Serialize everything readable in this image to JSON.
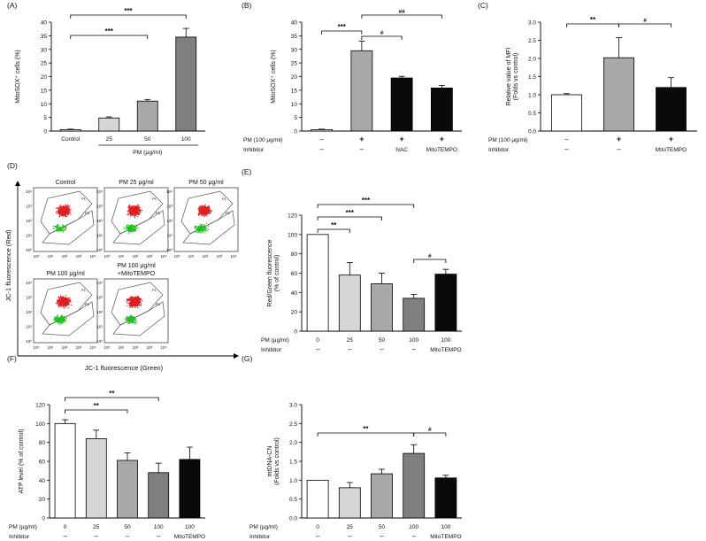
{
  "colors": {
    "white": "#ffffff",
    "light_gray": "#d6d6d6",
    "mid_gray": "#a8a8a8",
    "dark_gray": "#7f7f7f",
    "black": "#0a0a0a",
    "dot_red": "#e02020",
    "dot_green": "#20c020"
  },
  "chart_data": [
    {
      "panel": "(A)",
      "type": "bar",
      "ylabel": "MitoSOX⁺ cells (%)",
      "xlabel": "PM (μg/ml)",
      "ylim": [
        0,
        40
      ],
      "yticks": [
        "0",
        "5",
        "10",
        "15",
        "20",
        "25",
        "30",
        "35",
        "40"
      ],
      "categories": [
        "Control",
        "25",
        "50",
        "100"
      ],
      "values": [
        0.5,
        4.8,
        11.0,
        34.5
      ],
      "errors": [
        0.2,
        0.4,
        0.6,
        3.2
      ],
      "significance": [
        {
          "label": "***",
          "from": "Control",
          "to": "50"
        },
        {
          "label": "***",
          "from": "Control",
          "to": "100"
        }
      ]
    },
    {
      "panel": "(B)",
      "type": "bar",
      "ylabel": "MitoSOX⁺ cells (%)",
      "ylim": [
        0,
        40
      ],
      "yticks": [
        "0",
        "5",
        "10",
        "15",
        "20",
        "25",
        "30",
        "35",
        "40"
      ],
      "row_labels": [
        "PM (100 μg/ml)",
        "Inhibitor"
      ],
      "rows": [
        [
          "–",
          "+",
          "+",
          "+"
        ],
        [
          "–",
          "–",
          "NAC",
          "MitoTEMPO"
        ]
      ],
      "values": [
        0.5,
        29.5,
        19.5,
        15.8
      ],
      "errors": [
        0.2,
        3.5,
        0.6,
        1.0
      ],
      "significance": [
        {
          "label": "***",
          "from": 0,
          "to": 1
        },
        {
          "label": "#",
          "from": 1,
          "to": 2
        },
        {
          "label": "##",
          "from": 1,
          "to": 3
        }
      ]
    },
    {
      "panel": "(C)",
      "type": "bar",
      "ylabel": "Relative value of MFI",
      "ylabel2": "(Folds vs control)",
      "ylim": [
        0,
        3.0
      ],
      "yticks": [
        "0.0",
        "0.5",
        "1.0",
        "1.5",
        "2.0",
        "2.5",
        "3.0"
      ],
      "row_labels": [
        "PM (100 μg/ml)",
        "Inhibitor"
      ],
      "rows": [
        [
          "–",
          "+",
          "+"
        ],
        [
          "–",
          "–",
          "MitoTEMPO"
        ]
      ],
      "values": [
        1.0,
        2.02,
        1.2
      ],
      "errors": [
        0.03,
        0.55,
        0.27
      ],
      "significance": [
        {
          "label": "**",
          "from": 0,
          "to": 1
        },
        {
          "label": "#",
          "from": 1,
          "to": 2
        }
      ]
    },
    {
      "panel": "(D)",
      "type": "scatter",
      "ylabel": "JC-1 fluorescence (Red)",
      "xlabel": "JC-1 fluorescence (Green)",
      "subplots": [
        "Control",
        "PM 25 μg/ml",
        "PM 50 μg/ml",
        "PM 100 μg/ml",
        "PM 100 μg/ml"
      ],
      "subplot_extra": "+MitoTEMPO",
      "ticks": [
        "10⁰",
        "10¹",
        "10²",
        "10³",
        "10⁴"
      ],
      "gates": [
        "P1",
        "P2"
      ]
    },
    {
      "panel": "(E)",
      "type": "bar",
      "ylabel": "Red/Green fluorescence",
      "ylabel2": "(% of control)",
      "ylim": [
        0,
        120
      ],
      "yticks": [
        "0",
        "20",
        "40",
        "60",
        "80",
        "100",
        "120"
      ],
      "row_labels": [
        "PM (μg/ml)",
        "Inhibitor"
      ],
      "rows": [
        [
          "0",
          "25",
          "50",
          "100",
          "100"
        ],
        [
          "–",
          "–",
          "–",
          "–",
          "MitoTEMPO"
        ]
      ],
      "values": [
        100,
        58,
        49,
        34,
        59
      ],
      "errors": [
        0,
        13,
        11,
        4,
        5
      ],
      "significance": [
        {
          "label": "**",
          "from": 0,
          "to": 1
        },
        {
          "label": "***",
          "from": 0,
          "to": 2
        },
        {
          "label": "***",
          "from": 0,
          "to": 3
        },
        {
          "label": "#",
          "from": 3,
          "to": 4
        }
      ]
    },
    {
      "panel": "(F)",
      "type": "bar",
      "ylabel": "ATP level (% of control)",
      "ylim": [
        0,
        120
      ],
      "yticks": [
        "0",
        "20",
        "40",
        "60",
        "80",
        "100",
        "120"
      ],
      "row_labels": [
        "PM (μg/ml)",
        "Inhibitor"
      ],
      "rows": [
        [
          "0",
          "25",
          "50",
          "100",
          "100"
        ],
        [
          "–",
          "–",
          "–",
          "–",
          "MitoTEMPO"
        ]
      ],
      "values": [
        100,
        84,
        61,
        48,
        62
      ],
      "errors": [
        4,
        9,
        8,
        10,
        13
      ],
      "significance": [
        {
          "label": "**",
          "from": 0,
          "to": 2
        },
        {
          "label": "**",
          "from": 0,
          "to": 3
        }
      ]
    },
    {
      "panel": "(G)",
      "type": "bar",
      "ylabel": "mtDNA-CN",
      "ylabel2": "(Folds vs control)",
      "ylim": [
        0,
        3.0
      ],
      "yticks": [
        "0.0",
        "0.5",
        "1.0",
        "1.5",
        "2.0",
        "2.5",
        "3.0"
      ],
      "row_labels": [
        "PM (μg/ml)",
        "Inhibitor"
      ],
      "rows": [
        [
          "0",
          "25",
          "50",
          "100",
          "100"
        ],
        [
          "–",
          "–",
          "–",
          "–",
          "MitoTEMPO"
        ]
      ],
      "values": [
        1.0,
        0.8,
        1.17,
        1.71,
        1.06
      ],
      "errors": [
        0,
        0.14,
        0.12,
        0.23,
        0.07
      ],
      "significance": [
        {
          "label": "**",
          "from": 0,
          "to": 3
        },
        {
          "label": "#",
          "from": 3,
          "to": 4
        }
      ]
    }
  ]
}
